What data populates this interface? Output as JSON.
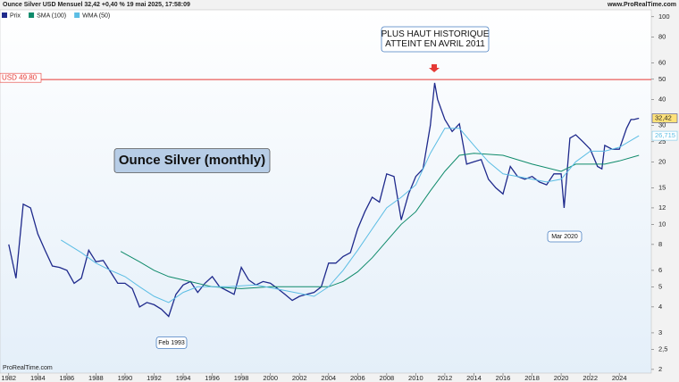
{
  "chart_data": {
    "type": "line",
    "title": "Ounce Silver USD Mensuel 32,42 +0,40 % 19 mai 2025, 17:58:09",
    "source": "www.ProRealTime.com",
    "footer": "ProRealTime.com",
    "log_y": true,
    "grid": false,
    "xlim": [
      1981.4,
      2026.2
    ],
    "xticks": [
      1982,
      1984,
      1986,
      1988,
      1990,
      1992,
      1994,
      1996,
      1998,
      2000,
      2002,
      2004,
      2006,
      2008,
      2010,
      2012,
      2014,
      2016,
      2018,
      2020,
      2022,
      2024
    ],
    "ylim": [
      1.92,
      108
    ],
    "yticks": [
      2,
      {
        "value": 2.5,
        "label": "2,5"
      },
      3,
      4,
      5,
      6,
      8,
      10,
      12,
      15,
      20,
      25,
      30,
      40,
      50,
      60,
      80,
      100
    ],
    "hline": {
      "value": 49.8,
      "label": "USD 49.80",
      "color": "#e53935"
    },
    "series": [
      {
        "name": "Prix",
        "color": "#1f2a8c",
        "x": [
          1982.0,
          1982.5,
          1983.0,
          1983.5,
          1984.0,
          1984.5,
          1985.0,
          1985.5,
          1986.0,
          1986.5,
          1987.0,
          1987.5,
          1988.0,
          1988.5,
          1989.0,
          1989.5,
          1990.0,
          1990.5,
          1991.0,
          1991.5,
          1992.0,
          1992.5,
          1993.0,
          1993.5,
          1994.0,
          1994.5,
          1995.0,
          1995.5,
          1996.0,
          1996.5,
          1997.0,
          1997.5,
          1998.0,
          1998.5,
          1999.0,
          1999.5,
          2000.0,
          2000.5,
          2001.0,
          2001.5,
          2002.0,
          2002.5,
          2003.0,
          2003.5,
          2004.0,
          2004.5,
          2005.0,
          2005.5,
          2006.0,
          2006.5,
          2007.0,
          2007.5,
          2008.0,
          2008.5,
          2009.0,
          2009.5,
          2010.0,
          2010.5,
          2011.0,
          2011.3,
          2011.5,
          2012.0,
          2012.5,
          2013.0,
          2013.5,
          2014.0,
          2014.5,
          2015.0,
          2015.5,
          2016.0,
          2016.5,
          2017.0,
          2017.5,
          2018.0,
          2018.5,
          2019.0,
          2019.5,
          2020.0,
          2020.2,
          2020.6,
          2021.0,
          2021.5,
          2022.0,
          2022.5,
          2022.8,
          2023.0,
          2023.5,
          2024.0,
          2024.5,
          2024.8,
          2025.0,
          2025.35
        ],
        "values": [
          8.0,
          5.5,
          12.5,
          12.0,
          9.0,
          7.5,
          6.3,
          6.2,
          6.0,
          5.2,
          5.5,
          7.5,
          6.6,
          6.7,
          5.9,
          5.2,
          5.2,
          4.9,
          4.0,
          4.2,
          4.1,
          3.9,
          3.6,
          4.6,
          5.1,
          5.3,
          4.7,
          5.2,
          5.6,
          5.0,
          4.8,
          4.6,
          6.2,
          5.4,
          5.1,
          5.3,
          5.2,
          4.9,
          4.6,
          4.3,
          4.5,
          4.6,
          4.7,
          5.0,
          6.5,
          6.5,
          7.0,
          7.3,
          9.5,
          11.5,
          13.5,
          12.8,
          17.5,
          17.0,
          10.5,
          14.0,
          17.0,
          18.5,
          30.0,
          48.0,
          40.0,
          32.0,
          28.0,
          30.5,
          19.5,
          20.0,
          20.5,
          16.5,
          15.0,
          14.0,
          19.0,
          17.0,
          16.5,
          17.0,
          16.0,
          15.5,
          17.5,
          17.5,
          12.0,
          26.0,
          27.0,
          25.0,
          23.0,
          19.0,
          18.5,
          24.0,
          23.0,
          23.0,
          29.0,
          32.0,
          32.0,
          32.42
        ],
        "last_label": {
          "value": 32.42,
          "label": "32,42"
        }
      },
      {
        "name": "SMA (100)",
        "color": "#0e8a6a",
        "x": [
          1989.7,
          1991,
          1992,
          1993,
          1994,
          1996,
          1998,
          2000,
          2002,
          2004,
          2005,
          2006,
          2007,
          2008,
          2009,
          2010,
          2011,
          2012,
          2013,
          2014,
          2016,
          2018,
          2020,
          2021,
          2023,
          2024,
          2025.35
        ],
        "values": [
          7.4,
          6.6,
          6.0,
          5.6,
          5.4,
          5.0,
          4.9,
          5.0,
          5.0,
          5.0,
          5.3,
          5.9,
          6.9,
          8.3,
          10.0,
          11.5,
          14.5,
          18.0,
          21.5,
          22.0,
          21.5,
          19.5,
          18.0,
          19.5,
          19.5,
          20.2,
          21.5
        ]
      },
      {
        "name": "WMA (50)",
        "color": "#5bbde4",
        "x": [
          1985.6,
          1987,
          1988,
          1989,
          1990,
          1991,
          1992,
          1993,
          1994,
          1995,
          1997,
          1999,
          2001,
          2003,
          2004,
          2005,
          2006,
          2007,
          2008,
          2009,
          2010,
          2011,
          2012,
          2013,
          2014,
          2015,
          2016,
          2017,
          2018,
          2019,
          2020,
          2021,
          2022,
          2023,
          2024,
          2025.35
        ],
        "values": [
          8.4,
          7.3,
          6.5,
          6.0,
          5.6,
          5.0,
          4.5,
          4.2,
          4.7,
          5.0,
          5.0,
          5.1,
          4.8,
          4.5,
          5.0,
          6.0,
          7.5,
          9.5,
          12,
          13.5,
          15.5,
          22,
          29,
          29,
          24,
          20,
          17.5,
          17,
          16.5,
          16,
          16.5,
          20,
          22.5,
          22.5,
          23.5,
          26.7
        ],
        "last_label": {
          "value": 26.715,
          "label": "26,715"
        }
      }
    ],
    "annotations": [
      {
        "text": [
          "PLUS HAUT HISTORIQUE",
          "ATTEINT EN AVRIL 2011"
        ]
      },
      {
        "text": [
          "Ounce Silver (monthly)"
        ]
      },
      {
        "text": [
          "Mar 2020"
        ]
      },
      {
        "text": [
          "Feb 1993"
        ]
      }
    ]
  }
}
